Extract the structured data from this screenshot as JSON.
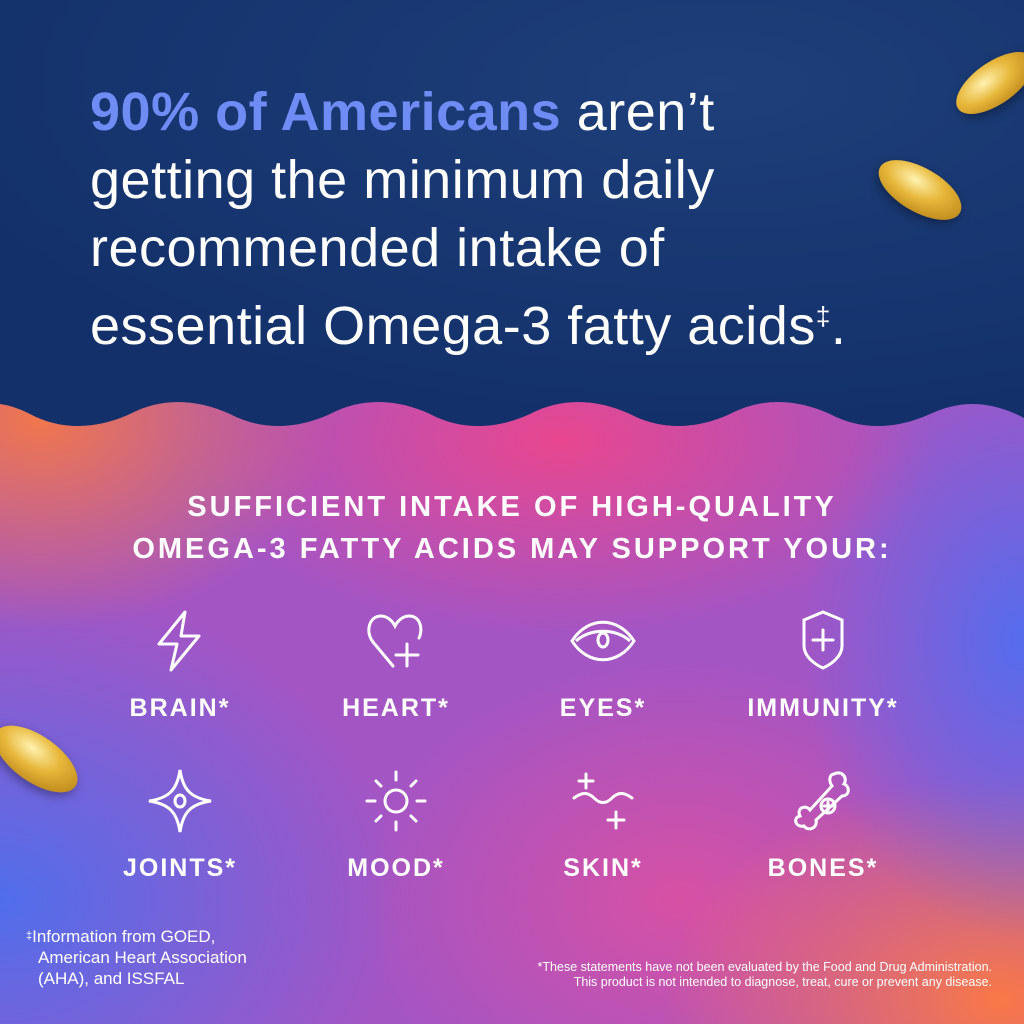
{
  "headline": {
    "highlight": "90% of Americans",
    "line1_rest": " aren’t",
    "line2": "getting the minimum daily",
    "line3": "recommended intake of",
    "line4": "essential Omega-3 fatty acids",
    "dagger": "‡",
    "period": "."
  },
  "subheading": {
    "line1": "SUFFICIENT INTAKE OF HIGH-QUALITY",
    "line2": "OMEGA-3 FATTY ACIDS MAY SUPPORT YOUR:"
  },
  "benefits": [
    {
      "label": "BRAIN*",
      "icon": "lightning-icon"
    },
    {
      "label": "HEART*",
      "icon": "heart-plus-icon"
    },
    {
      "label": "EYES*",
      "icon": "eye-icon"
    },
    {
      "label": "IMMUNITY*",
      "icon": "shield-plus-icon"
    },
    {
      "label": "JOINTS*",
      "icon": "star-joint-icon"
    },
    {
      "label": "MOOD*",
      "icon": "sun-icon"
    },
    {
      "label": "SKIN*",
      "icon": "wave-sparkle-icon"
    },
    {
      "label": "BONES*",
      "icon": "bone-plus-icon"
    }
  ],
  "footnote": {
    "mark": "‡",
    "line1": "Information from GOED,",
    "line2": "American Heart Association",
    "line3": "(AHA), and ISSFAL"
  },
  "disclaimer": {
    "line1": "*These statements have not been evaluated by the Food and Drug Administration.",
    "line2": "This product is not intended to diagnose, treat, cure or prevent any disease."
  },
  "colors": {
    "navy": "#16326b",
    "highlight": "#6f8cf5",
    "capsule": "#e7b73a"
  }
}
